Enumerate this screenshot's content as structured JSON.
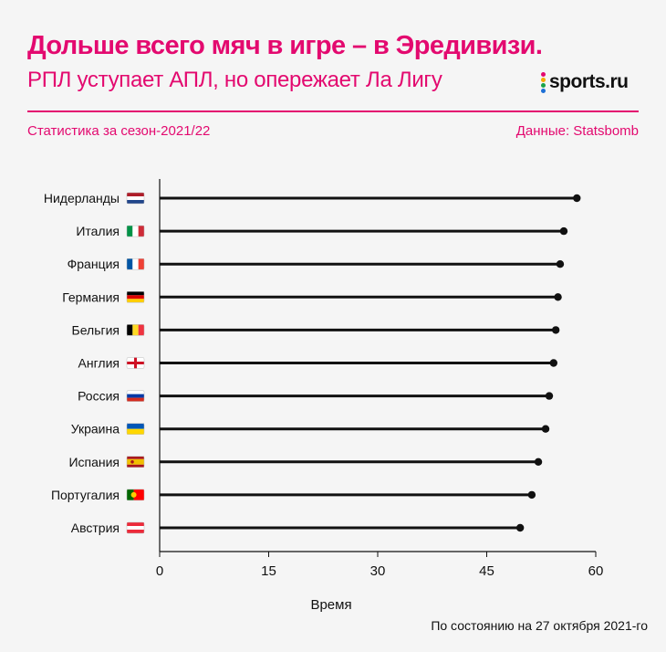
{
  "header": {
    "title": "Дольше всего мяч в игре – в Эредивизи.",
    "subtitle": "РПЛ уступает АПЛ, но опережает Ла Лигу",
    "logo_text": "sports.ru",
    "stat_label": "Статистика за сезон-2021/22",
    "source_label": "Данные: Statsbomb"
  },
  "colors": {
    "accent": "#e3096f",
    "bar": "#111111",
    "background": "#f5f5f5"
  },
  "footnote": "По состоянию на 27 октября 2021-го",
  "chart_data": {
    "type": "bar",
    "orientation": "horizontal",
    "style": "lollipop",
    "categories": [
      "Нидерланды",
      "Италия",
      "Франция",
      "Германия",
      "Бельгия",
      "Англия",
      "Россия",
      "Украина",
      "Испания",
      "Португалия",
      "Австрия"
    ],
    "flags": [
      "netherlands",
      "italy",
      "france",
      "germany",
      "belgium",
      "england",
      "russia",
      "ukraine",
      "spain",
      "portugal",
      "austria"
    ],
    "values": [
      57.4,
      55.6,
      55.1,
      54.8,
      54.5,
      54.2,
      53.6,
      53.1,
      52.1,
      51.2,
      49.6
    ],
    "xlabel": "Время",
    "ylabel": "",
    "xlim": [
      0,
      60
    ],
    "xticks": [
      "0",
      "15",
      "30",
      "45",
      "60"
    ],
    "grid": false
  }
}
